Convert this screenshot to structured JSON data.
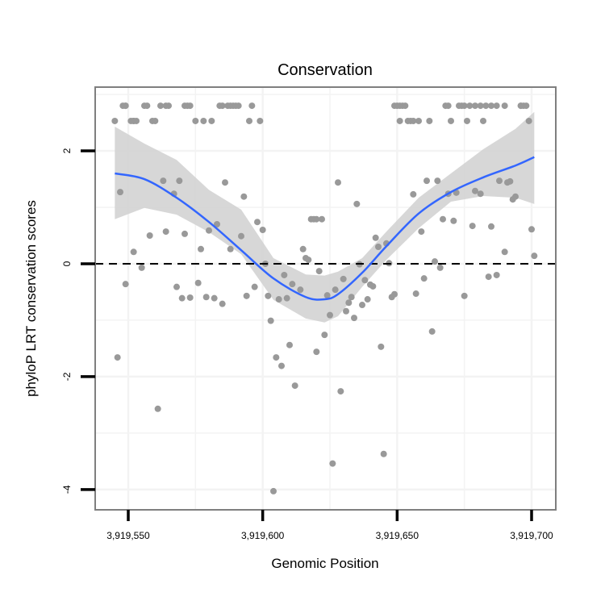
{
  "chart_data": {
    "type": "scatter",
    "title": "Conservation",
    "xlabel": "Genomic Position",
    "ylabel": "phyloP LRT conservation scores",
    "xlim": [
      3919537.7,
      3919709
    ],
    "ylim": [
      -4.36,
      3.13
    ],
    "x_ticks": [
      3919550,
      3919600,
      3919650,
      3919700
    ],
    "x_tick_labels": [
      "3,919,550",
      "3,919,600",
      "3,919,650",
      "3,919,700"
    ],
    "x_minor_grid": [
      3919575,
      3919625,
      3919675
    ],
    "y_ticks": [
      2,
      0,
      -2,
      -4
    ],
    "y_tick_labels": [
      "2",
      "0",
      "-2",
      "-4"
    ],
    "y_minor_grid": [
      3,
      1,
      -1,
      -3
    ],
    "grid": true,
    "hline": 0,
    "colors": {
      "points": "#999999",
      "smooth": "#3366FF",
      "band": "#D3D3D3",
      "hline": "#000000",
      "panel_border": "#7F7F7F",
      "grid": "#F3F3F3"
    },
    "points": [
      [
        3919548,
        2.8
      ],
      [
        3919549,
        2.8
      ],
      [
        3919549,
        2.8
      ],
      [
        3919556,
        2.8
      ],
      [
        3919557,
        2.8
      ],
      [
        3919562,
        2.8
      ],
      [
        3919564,
        2.8
      ],
      [
        3919565,
        2.8
      ],
      [
        3919571,
        2.8
      ],
      [
        3919572,
        2.8
      ],
      [
        3919573,
        2.8
      ],
      [
        3919584,
        2.8
      ],
      [
        3919585,
        2.8
      ],
      [
        3919587,
        2.8
      ],
      [
        3919588,
        2.8
      ],
      [
        3919589,
        2.8
      ],
      [
        3919590,
        2.8
      ],
      [
        3919591,
        2.8
      ],
      [
        3919596,
        2.8
      ],
      [
        3919649,
        2.8
      ],
      [
        3919650,
        2.8
      ],
      [
        3919651,
        2.8
      ],
      [
        3919652,
        2.8
      ],
      [
        3919653,
        2.8
      ],
      [
        3919668,
        2.8
      ],
      [
        3919669,
        2.8
      ],
      [
        3919673,
        2.8
      ],
      [
        3919674,
        2.8
      ],
      [
        3919675,
        2.8
      ],
      [
        3919677,
        2.8
      ],
      [
        3919679,
        2.8
      ],
      [
        3919681,
        2.8
      ],
      [
        3919683,
        2.8
      ],
      [
        3919685,
        2.8
      ],
      [
        3919687,
        2.8
      ],
      [
        3919690,
        2.8
      ],
      [
        3919696,
        2.8
      ],
      [
        3919696,
        2.8
      ],
      [
        3919697,
        2.8
      ],
      [
        3919698,
        2.8
      ],
      [
        3919545,
        2.53
      ],
      [
        3919551,
        2.53
      ],
      [
        3919552,
        2.53
      ],
      [
        3919552,
        2.53
      ],
      [
        3919553,
        2.53
      ],
      [
        3919559,
        2.53
      ],
      [
        3919560,
        2.53
      ],
      [
        3919575,
        2.53
      ],
      [
        3919578,
        2.53
      ],
      [
        3919581,
        2.53
      ],
      [
        3919595,
        2.53
      ],
      [
        3919599,
        2.53
      ],
      [
        3919651,
        2.53
      ],
      [
        3919654,
        2.53
      ],
      [
        3919655,
        2.53
      ],
      [
        3919656,
        2.53
      ],
      [
        3919658,
        2.53
      ],
      [
        3919662,
        2.53
      ],
      [
        3919670,
        2.53
      ],
      [
        3919676,
        2.53
      ],
      [
        3919682,
        2.53
      ],
      [
        3919699,
        2.53
      ],
      [
        3919547,
        1.27
      ],
      [
        3919563,
        1.47
      ],
      [
        3919569,
        1.47
      ],
      [
        3919567,
        1.24
      ],
      [
        3919586,
        1.44
      ],
      [
        3919593,
        1.19
      ],
      [
        3919598,
        0.74
      ],
      [
        3919600,
        0.6
      ],
      [
        3919583,
        0.7
      ],
      [
        3919580,
        0.59
      ],
      [
        3919592,
        0.49
      ],
      [
        3919588,
        0.26
      ],
      [
        3919577,
        0.26
      ],
      [
        3919571,
        0.53
      ],
      [
        3919564,
        0.57
      ],
      [
        3919558,
        0.5
      ],
      [
        3919552,
        0.21
      ],
      [
        3919601,
        0.0
      ],
      [
        3919615,
        0.26
      ],
      [
        3919616,
        0.1
      ],
      [
        3919617,
        0.07
      ],
      [
        3919618,
        0.79
      ],
      [
        3919619,
        0.79
      ],
      [
        3919620,
        0.79
      ],
      [
        3919622,
        0.79
      ],
      [
        3919628,
        1.44
      ],
      [
        3919635,
        1.06
      ],
      [
        3919656,
        1.23
      ],
      [
        3919661,
        1.47
      ],
      [
        3919665,
        1.47
      ],
      [
        3919669,
        1.24
      ],
      [
        3919672,
        1.26
      ],
      [
        3919679,
        1.29
      ],
      [
        3919681,
        1.24
      ],
      [
        3919688,
        1.47
      ],
      [
        3919691,
        1.44
      ],
      [
        3919692,
        1.46
      ],
      [
        3919693,
        1.14
      ],
      [
        3919694,
        1.19
      ],
      [
        3919667,
        0.79
      ],
      [
        3919671,
        0.76
      ],
      [
        3919678,
        0.67
      ],
      [
        3919685,
        0.66
      ],
      [
        3919700,
        0.61
      ],
      [
        3919701,
        0.14
      ],
      [
        3919690,
        0.21
      ],
      [
        3919659,
        0.57
      ],
      [
        3919642,
        0.46
      ],
      [
        3919643,
        0.3
      ],
      [
        3919646,
        0.36
      ],
      [
        3919647,
        0.01
      ],
      [
        3919636,
        -0.01
      ],
      [
        3919664,
        0.04
      ],
      [
        3919555,
        -0.07
      ],
      [
        3919549,
        -0.36
      ],
      [
        3919568,
        -0.41
      ],
      [
        3919576,
        -0.34
      ],
      [
        3919570,
        -0.61
      ],
      [
        3919573,
        -0.6
      ],
      [
        3919579,
        -0.59
      ],
      [
        3919582,
        -0.61
      ],
      [
        3919585,
        -0.71
      ],
      [
        3919594,
        -0.57
      ],
      [
        3919597,
        -0.41
      ],
      [
        3919602,
        -0.57
      ],
      [
        3919606,
        -0.63
      ],
      [
        3919609,
        -0.61
      ],
      [
        3919608,
        -0.2
      ],
      [
        3919611,
        -0.36
      ],
      [
        3919614,
        -0.46
      ],
      [
        3919621,
        -0.13
      ],
      [
        3919624,
        -0.56
      ],
      [
        3919627,
        -0.46
      ],
      [
        3919630,
        -0.27
      ],
      [
        3919633,
        -0.59
      ],
      [
        3919632,
        -0.69
      ],
      [
        3919631,
        -0.84
      ],
      [
        3919637,
        -0.73
      ],
      [
        3919639,
        -0.63
      ],
      [
        3919638,
        -0.29
      ],
      [
        3919640,
        -0.37
      ],
      [
        3919641,
        -0.4
      ],
      [
        3919634,
        -0.96
      ],
      [
        3919625,
        -0.91
      ],
      [
        3919603,
        -1.01
      ],
      [
        3919623,
        -1.26
      ],
      [
        3919610,
        -1.44
      ],
      [
        3919620,
        -1.56
      ],
      [
        3919605,
        -1.66
      ],
      [
        3919607,
        -1.81
      ],
      [
        3919612,
        -2.16
      ],
      [
        3919629,
        -2.26
      ],
      [
        3919644,
        -1.47
      ],
      [
        3919663,
        -1.2
      ],
      [
        3919648,
        -0.59
      ],
      [
        3919649,
        -0.54
      ],
      [
        3919657,
        -0.53
      ],
      [
        3919660,
        -0.26
      ],
      [
        3919666,
        -0.07
      ],
      [
        3919675,
        -0.57
      ],
      [
        3919684,
        -0.23
      ],
      [
        3919687,
        -0.2
      ],
      [
        3919546,
        -1.66
      ],
      [
        3919561,
        -2.57
      ],
      [
        3919645,
        -3.37
      ],
      [
        3919626,
        -3.54
      ],
      [
        3919604,
        -4.03
      ]
    ],
    "smooth": {
      "x": [
        3919545,
        3919556,
        3919568,
        3919580,
        3919592,
        3919604,
        3919616,
        3919623,
        3919628,
        3919637,
        3919646,
        3919658,
        3919670,
        3919682,
        3919694,
        3919701
      ],
      "y": [
        1.6,
        1.5,
        1.17,
        0.74,
        0.24,
        -0.26,
        -0.59,
        -0.63,
        -0.54,
        -0.16,
        0.31,
        0.89,
        1.27,
        1.53,
        1.74,
        1.89
      ],
      "upper": [
        2.43,
        2.13,
        1.84,
        1.31,
        0.96,
        0.1,
        -0.19,
        -0.21,
        -0.14,
        0.1,
        0.57,
        1.17,
        1.6,
        2.03,
        2.39,
        2.69
      ],
      "lower": [
        0.79,
        0.99,
        0.87,
        0.56,
        0.17,
        -0.64,
        -0.97,
        -1.04,
        -0.93,
        -0.41,
        0.07,
        0.63,
        1.1,
        1.2,
        1.17,
        1.06
      ]
    }
  }
}
